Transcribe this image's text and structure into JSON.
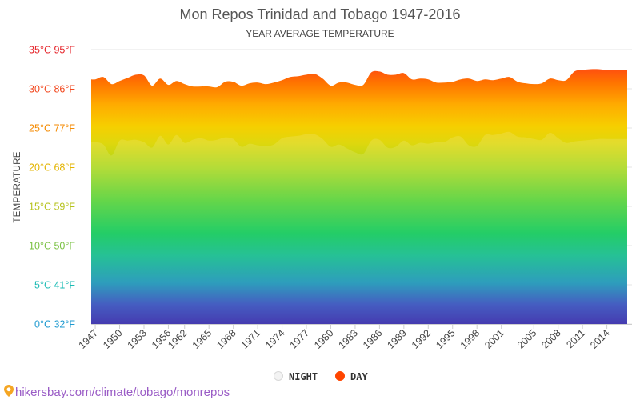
{
  "chart_data": {
    "type": "area",
    "title": "Mon Repos Trinidad and Tobago 1947-2016",
    "subtitle": "YEAR AVERAGE TEMPERATURE",
    "ylabel": "TEMPERATURE",
    "ylim": [
      0,
      35
    ],
    "y_ticks": [
      {
        "value": 0,
        "label": "0°C 32°F",
        "color": "#1f9ad0"
      },
      {
        "value": 5,
        "label": "5°C 41°F",
        "color": "#1bbbb4"
      },
      {
        "value": 10,
        "label": "10°C 50°F",
        "color": "#7ac143"
      },
      {
        "value": 15,
        "label": "15°C 59°F",
        "color": "#b6c21b"
      },
      {
        "value": 20,
        "label": "20°C 68°F",
        "color": "#e3b400"
      },
      {
        "value": 25,
        "label": "25°C 77°F",
        "color": "#f48a00"
      },
      {
        "value": 30,
        "label": "30°C 86°F",
        "color": "#f2471d"
      },
      {
        "value": 35,
        "label": "35°C 95°F",
        "color": "#e52329"
      }
    ],
    "x_tick_labels": [
      "1947",
      "1950",
      "1953",
      "1956",
      "1962",
      "1965",
      "1968",
      "1971",
      "1974",
      "1977",
      "1980",
      "1983",
      "1986",
      "1989",
      "1992",
      "1995",
      "1998",
      "2001",
      "2005",
      "2008",
      "2011",
      "2014"
    ],
    "x": [
      "1947",
      "1948",
      "1949",
      "1950",
      "1951",
      "1952",
      "1953",
      "1954",
      "1955",
      "1956",
      "1957",
      "1962",
      "1963",
      "1964",
      "1965",
      "1966",
      "1967",
      "1968",
      "1969",
      "1970",
      "1971",
      "1972",
      "1973",
      "1974",
      "1975",
      "1976",
      "1977",
      "1978",
      "1979",
      "1980",
      "1981",
      "1982",
      "1983",
      "1984",
      "1985",
      "1986",
      "1987",
      "1988",
      "1989",
      "1990",
      "1991",
      "1992",
      "1993",
      "1994",
      "1995",
      "1996",
      "1997",
      "1998",
      "1999",
      "2000",
      "2001",
      "2002",
      "2003",
      "2004",
      "2005",
      "2006",
      "2007",
      "2008",
      "2009",
      "2010",
      "2011",
      "2012",
      "2013",
      "2014",
      "2015",
      "2016"
    ],
    "series": [
      {
        "name": "DAY",
        "color": "#ff4500",
        "values": [
          31.2,
          31.5,
          30.6,
          31.0,
          31.4,
          31.8,
          31.7,
          30.4,
          31.3,
          30.5,
          31.0,
          30.6,
          30.3,
          30.3,
          30.3,
          30.2,
          30.9,
          30.9,
          30.4,
          30.7,
          30.8,
          30.6,
          30.8,
          31.1,
          31.5,
          31.6,
          31.8,
          31.9,
          31.3,
          30.4,
          30.8,
          30.8,
          30.5,
          30.5,
          32.1,
          32.2,
          31.8,
          31.8,
          32.0,
          31.2,
          31.3,
          31.2,
          30.8,
          30.8,
          30.9,
          31.2,
          31.3,
          31.0,
          31.2,
          31.1,
          31.3,
          31.5,
          30.9,
          30.7,
          30.6,
          30.7,
          31.3,
          31.1,
          31.1,
          32.2,
          32.4,
          32.5,
          32.5,
          32.4,
          32.4,
          32.4
        ]
      },
      {
        "name": "NIGHT",
        "color": "#dddddd",
        "values": [
          23.2,
          22.9,
          21.5,
          23.4,
          23.4,
          23.5,
          23.2,
          22.5,
          24.0,
          22.9,
          24.1,
          23.1,
          23.5,
          23.7,
          23.4,
          23.5,
          23.8,
          23.6,
          22.6,
          23.0,
          22.8,
          22.7,
          22.9,
          23.7,
          23.9,
          24.0,
          24.2,
          24.2,
          23.6,
          22.6,
          22.9,
          22.4,
          21.9,
          21.7,
          23.4,
          23.5,
          22.5,
          22.6,
          23.4,
          22.8,
          23.1,
          23.0,
          23.2,
          23.2,
          23.8,
          23.9,
          22.8,
          22.7,
          24.1,
          24.1,
          24.3,
          24.5,
          23.9,
          23.8,
          23.6,
          23.5,
          24.4,
          23.7,
          23.1,
          23.3,
          23.4,
          23.5,
          23.6,
          23.6,
          23.6,
          23.6
        ]
      }
    ],
    "legend": {
      "placement": "bottom-center",
      "items": [
        "NIGHT",
        "DAY"
      ]
    },
    "grid": true
  },
  "footer": {
    "source_text": "hikersbay.com/climate/tobago/monrepos",
    "source_color": "#9a5cc6"
  }
}
